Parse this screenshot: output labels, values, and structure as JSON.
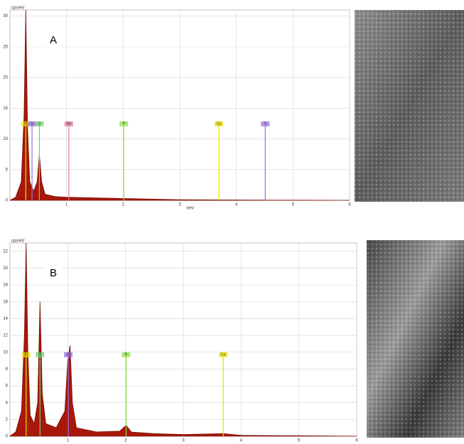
{
  "chart_data": [
    {
      "type": "area",
      "panel_label": "A",
      "y_label": "cps/eV",
      "x_label": "keV",
      "color": "#a8180a",
      "x": [
        0,
        0.1,
        0.2,
        0.25,
        0.28,
        0.31,
        0.35,
        0.42,
        0.48,
        0.52,
        0.56,
        0.62,
        0.8,
        1.0,
        1.5,
        2.0,
        2.5,
        3.0,
        4.0,
        5.0,
        6.0
      ],
      "values": [
        0,
        0.5,
        3,
        14,
        31,
        12,
        3,
        1.5,
        3,
        7.5,
        3,
        1,
        0.6,
        0.5,
        0.4,
        0.3,
        0.2,
        0.1,
        0.05,
        0.02,
        0
      ],
      "xlim": [
        0,
        6
      ],
      "xticks": [
        1,
        2,
        3,
        4,
        5,
        6
      ],
      "ylim": [
        0,
        31
      ],
      "yticks": [
        0,
        5,
        10,
        15,
        20,
        25,
        30
      ],
      "grid": true,
      "markers": [
        {
          "label": "C",
          "x": 0.28,
          "color": "#e8e000"
        },
        {
          "label": "N",
          "x": 0.39,
          "color": "#9a6ee0"
        },
        {
          "label": "O",
          "x": 0.52,
          "color": "#6fd06f"
        },
        {
          "label": "Na",
          "x": 1.04,
          "color": "#e07a9a"
        },
        {
          "label": "P",
          "x": 2.01,
          "color": "#8fe04a"
        },
        {
          "label": "Ca",
          "x": 3.69,
          "color": "#e8e000"
        },
        {
          "label": "Ti",
          "x": 4.51,
          "color": "#9a6ee0"
        }
      ]
    },
    {
      "type": "area",
      "panel_label": "B",
      "y_label": "cps/eV",
      "color": "#a8180a",
      "x": [
        0,
        0.1,
        0.2,
        0.25,
        0.28,
        0.31,
        0.35,
        0.42,
        0.48,
        0.52,
        0.56,
        0.62,
        0.8,
        0.95,
        1.0,
        1.04,
        1.08,
        1.15,
        1.5,
        1.9,
        2.01,
        2.1,
        2.5,
        3.0,
        3.69,
        4.0,
        5.0,
        6.0
      ],
      "values": [
        0,
        0.5,
        3,
        12,
        23,
        10,
        2.5,
        1.5,
        4,
        16,
        5,
        1.5,
        1,
        3,
        9,
        10.8,
        4,
        1,
        0.5,
        0.6,
        1.3,
        0.5,
        0.3,
        0.2,
        0.3,
        0.1,
        0.05,
        0
      ],
      "xlim": [
        0,
        6
      ],
      "xticks": [
        1,
        2,
        3,
        4,
        5,
        6
      ],
      "ylim": [
        0,
        23
      ],
      "yticks": [
        0,
        2,
        4,
        6,
        8,
        10,
        12,
        14,
        16,
        18,
        20,
        22
      ],
      "grid": true,
      "markers": [
        {
          "label": "C",
          "x": 0.28,
          "color": "#e8e000"
        },
        {
          "label": "O",
          "x": 0.52,
          "color": "#6fd06f"
        },
        {
          "label": "Zn",
          "x": 1.01,
          "color": "#9a6ee0"
        },
        {
          "label": "P",
          "x": 2.01,
          "color": "#8fe04a"
        },
        {
          "label": "Ca",
          "x": 3.69,
          "color": "#e8e000"
        }
      ]
    }
  ]
}
